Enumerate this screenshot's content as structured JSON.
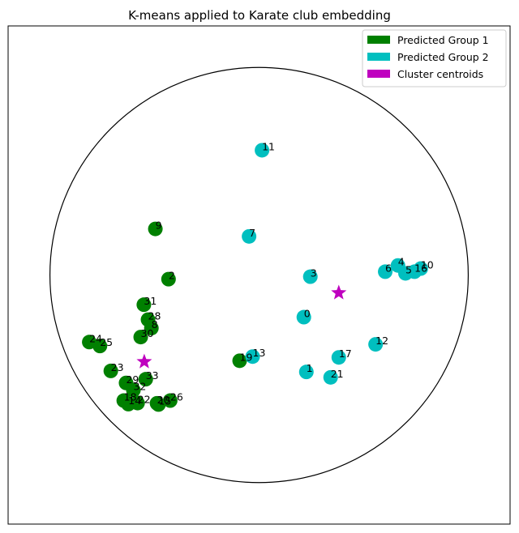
{
  "chart_data": {
    "type": "scatter",
    "title": "K-means applied to Karate club embedding",
    "xlabel": "",
    "ylabel": "",
    "xlim": [
      -1.2,
      1.2
    ],
    "ylim": [
      -1.2,
      1.2
    ],
    "grid": false,
    "axes_ticks_visible": false,
    "legend_position": "top-right",
    "boundary_circle": {
      "center": [
        0,
        0
      ],
      "radius": 1.0,
      "color": "#000000"
    },
    "series": [
      {
        "name": "Predicted Group 1",
        "color": "#008000",
        "points": [
          {
            "label": "9",
            "x": -0.496,
            "y": 0.222
          },
          {
            "label": "2",
            "x": -0.433,
            "y": -0.02
          },
          {
            "label": "31",
            "x": -0.551,
            "y": -0.143
          },
          {
            "label": "28",
            "x": -0.531,
            "y": -0.215
          },
          {
            "label": "8",
            "x": -0.515,
            "y": -0.256
          },
          {
            "label": "30",
            "x": -0.566,
            "y": -0.299
          },
          {
            "label": "24",
            "x": -0.812,
            "y": -0.323
          },
          {
            "label": "25",
            "x": -0.761,
            "y": -0.342
          },
          {
            "label": "23",
            "x": -0.709,
            "y": -0.462
          },
          {
            "label": "33",
            "x": -0.542,
            "y": -0.502
          },
          {
            "label": "29",
            "x": -0.636,
            "y": -0.52
          },
          {
            "label": "32",
            "x": -0.601,
            "y": -0.555
          },
          {
            "label": "18",
            "x": -0.647,
            "y": -0.605
          },
          {
            "label": "14",
            "x": -0.625,
            "y": -0.622
          },
          {
            "label": "22",
            "x": -0.581,
            "y": -0.617
          },
          {
            "label": "20",
            "x": -0.488,
            "y": -0.618
          },
          {
            "label": "15",
            "x": -0.481,
            "y": -0.624
          },
          {
            "label": "26",
            "x": -0.425,
            "y": -0.605
          },
          {
            "label": "19",
            "x": -0.093,
            "y": -0.413
          }
        ]
      },
      {
        "name": "Predicted Group 2",
        "color": "#00bfbf",
        "points": [
          {
            "label": "11",
            "x": 0.014,
            "y": 0.601
          },
          {
            "label": "7",
            "x": -0.048,
            "y": 0.186
          },
          {
            "label": "3",
            "x": 0.245,
            "y": -0.008
          },
          {
            "label": "0",
            "x": 0.214,
            "y": -0.203
          },
          {
            "label": "6",
            "x": 0.603,
            "y": 0.016
          },
          {
            "label": "4",
            "x": 0.664,
            "y": 0.046
          },
          {
            "label": "5",
            "x": 0.7,
            "y": 0.008
          },
          {
            "label": "16",
            "x": 0.743,
            "y": 0.016
          },
          {
            "label": "10",
            "x": 0.773,
            "y": 0.031
          },
          {
            "label": "12",
            "x": 0.557,
            "y": -0.334
          },
          {
            "label": "13",
            "x": -0.031,
            "y": -0.393
          },
          {
            "label": "17",
            "x": 0.381,
            "y": -0.397
          },
          {
            "label": "1",
            "x": 0.226,
            "y": -0.467
          },
          {
            "label": "21",
            "x": 0.342,
            "y": -0.493
          }
        ]
      },
      {
        "name": "Cluster centroids",
        "color": "#bf00bf",
        "marker": "star",
        "points": [
          {
            "label": "",
            "x": 0.381,
            "y": -0.086
          },
          {
            "label": "",
            "x": -0.549,
            "y": -0.418
          }
        ]
      }
    ]
  }
}
